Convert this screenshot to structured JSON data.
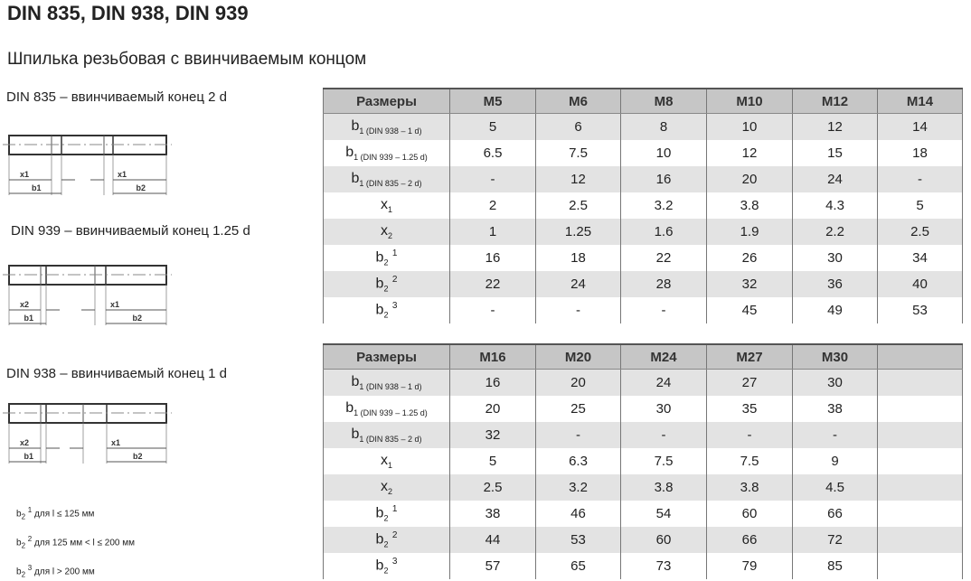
{
  "title": "DIN 835, DIN 938, DIN 939",
  "subtitle": "Шпилька резьбовая с ввинчиваемым концом",
  "diagrams": [
    {
      "label": "DIN 835 – ввинчиваемый конец 2 d",
      "left_x": "x1",
      "right_x": "x1",
      "left_b": "b1",
      "right_b": "b2"
    },
    {
      "label": "DIN 939 – ввинчиваемый конец 1.25 d",
      "left_x": "x2",
      "right_x": "x1",
      "left_b": "b1",
      "right_b": "b2"
    },
    {
      "label": "DIN 938 – ввинчиваемый конец 1 d",
      "left_x": "x2",
      "right_x": "x1",
      "left_b": "b1",
      "right_b": "b2"
    }
  ],
  "notes": [
    {
      "sym": "b",
      "sub": "2",
      "sup": "1",
      "text": " для l ≤ 125 мм"
    },
    {
      "sym": "b",
      "sub": "2",
      "sup": "2",
      "text": " для 125 мм < l ≤ 200 мм"
    },
    {
      "sym": "b",
      "sub": "2",
      "sup": "3",
      "text": " для l > 200 мм"
    }
  ],
  "row_labels": [
    {
      "sym": "b",
      "sub": "1 (DIN 938 – 1 d)",
      "sup": ""
    },
    {
      "sym": "b",
      "sub": "1 (DIN 939 – 1.25 d)",
      "sup": ""
    },
    {
      "sym": "b",
      "sub": "1 (DIN 835 – 2 d)",
      "sup": ""
    },
    {
      "sym": "x",
      "sub": "1",
      "sup": ""
    },
    {
      "sym": "x",
      "sub": "2",
      "sup": ""
    },
    {
      "sym": "b",
      "sub": "2",
      "sup": "1"
    },
    {
      "sym": "b",
      "sub": "2",
      "sup": "2"
    },
    {
      "sym": "b",
      "sub": "2",
      "sup": "3"
    }
  ],
  "tables": [
    {
      "header": [
        "Размеры",
        "M5",
        "M6",
        "M8",
        "M10",
        "M12",
        "M14"
      ],
      "rows": [
        [
          "5",
          "6",
          "8",
          "10",
          "12",
          "14"
        ],
        [
          "6.5",
          "7.5",
          "10",
          "12",
          "15",
          "18"
        ],
        [
          "-",
          "12",
          "16",
          "20",
          "24",
          "-"
        ],
        [
          "2",
          "2.5",
          "3.2",
          "3.8",
          "4.3",
          "5"
        ],
        [
          "1",
          "1.25",
          "1.6",
          "1.9",
          "2.2",
          "2.5"
        ],
        [
          "16",
          "18",
          "22",
          "26",
          "30",
          "34"
        ],
        [
          "22",
          "24",
          "28",
          "32",
          "36",
          "40"
        ],
        [
          "-",
          "-",
          "-",
          "45",
          "49",
          "53"
        ]
      ]
    },
    {
      "header": [
        "Размеры",
        "M16",
        "M20",
        "M24",
        "M27",
        "M30",
        ""
      ],
      "rows": [
        [
          "16",
          "20",
          "24",
          "27",
          "30",
          ""
        ],
        [
          "20",
          "25",
          "30",
          "35",
          "38",
          ""
        ],
        [
          "32",
          "-",
          "-",
          "-",
          "-",
          ""
        ],
        [
          "5",
          "6.3",
          "7.5",
          "7.5",
          "9",
          ""
        ],
        [
          "2.5",
          "3.2",
          "3.8",
          "3.8",
          "4.5",
          ""
        ],
        [
          "38",
          "46",
          "54",
          "60",
          "66",
          ""
        ],
        [
          "44",
          "53",
          "60",
          "66",
          "72",
          ""
        ],
        [
          "57",
          "65",
          "73",
          "79",
          "85",
          ""
        ]
      ]
    }
  ]
}
